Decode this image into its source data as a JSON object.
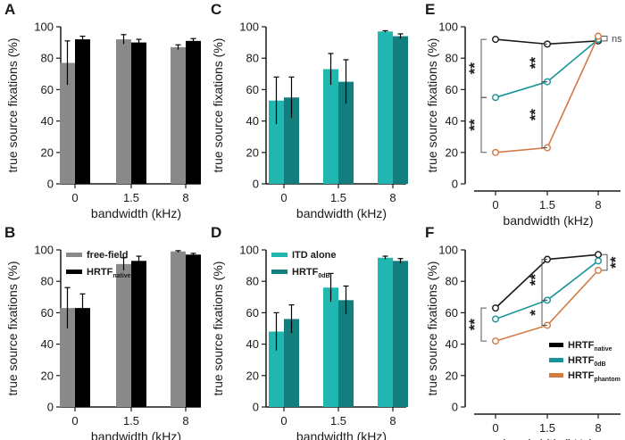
{
  "xlabel": "bandwidth (kHz)",
  "ylabel": "true source fixations (%)",
  "categories": [
    "0",
    "1.5",
    "8"
  ],
  "yticks": [
    "0",
    "20",
    "40",
    "60",
    "80",
    "100"
  ],
  "colors": {
    "gray": "#8a8a8a",
    "black": "#000000",
    "teal_light": "#1fb7b0",
    "teal_dark": "#137e7e",
    "native_line": "#1a1a1a",
    "teal_line": "#19939a",
    "orange": "#d17a44"
  },
  "chart_data": [
    {
      "panel": "A",
      "type": "bar",
      "xlabel": "bandwidth (kHz)",
      "ylabel": "true source fixations (%)",
      "categories": [
        "0",
        "1.5",
        "8"
      ],
      "ylim": [
        0,
        100
      ],
      "series": [
        {
          "name": "free-field",
          "color": "gray",
          "values": [
            77,
            92,
            87
          ],
          "err": [
            14,
            3,
            1.5
          ]
        },
        {
          "name": "HRTF native",
          "color": "black",
          "values": [
            92,
            90,
            91
          ],
          "err": [
            2,
            2,
            1.5
          ]
        }
      ]
    },
    {
      "panel": "B",
      "type": "bar",
      "xlabel": "bandwidth (kHz)",
      "ylabel": "true source fixations (%)",
      "categories": [
        "0",
        "1.5",
        "8"
      ],
      "ylim": [
        0,
        100
      ],
      "legend": {
        "position": "top-left",
        "items": [
          {
            "text": "free-field",
            "sub": "",
            "color": "gray"
          },
          {
            "text": "HRTF",
            "sub": "native",
            "color": "black"
          }
        ]
      },
      "series": [
        {
          "name": "free-field",
          "color": "gray",
          "values": [
            63,
            91,
            99
          ],
          "err": [
            13,
            4,
            0.5
          ]
        },
        {
          "name": "HRTF native",
          "color": "black",
          "values": [
            63,
            93,
            97
          ],
          "err": [
            9,
            3,
            0.8
          ]
        }
      ]
    },
    {
      "panel": "C",
      "type": "bar",
      "xlabel": "bandwidth (kHz)",
      "ylabel": "true source fixations (%)",
      "categories": [
        "0",
        "1.5",
        "8"
      ],
      "ylim": [
        0,
        100
      ],
      "series": [
        {
          "name": "ITD alone",
          "color": "teal_light",
          "values": [
            53,
            73,
            97
          ],
          "err": [
            15,
            10,
            0.5
          ]
        },
        {
          "name": "HRTF 0dB",
          "color": "teal_dark",
          "values": [
            55,
            65,
            94
          ],
          "err": [
            13,
            14,
            1.5
          ]
        }
      ]
    },
    {
      "panel": "D",
      "type": "bar",
      "xlabel": "bandwidth (kHz)",
      "ylabel": "true source fixations (%)",
      "categories": [
        "0",
        "1.5",
        "8"
      ],
      "ylim": [
        0,
        100
      ],
      "legend": {
        "position": "top-left",
        "items": [
          {
            "text": "ITD alone",
            "sub": "",
            "color": "teal_light"
          },
          {
            "text": "HRTF",
            "sub": "0dB",
            "color": "teal_dark"
          }
        ]
      },
      "series": [
        {
          "name": "ITD alone",
          "color": "teal_light",
          "values": [
            48,
            76,
            95
          ],
          "err": [
            12,
            9,
            1
          ]
        },
        {
          "name": "HRTF 0dB",
          "color": "teal_dark",
          "values": [
            56,
            68,
            93
          ],
          "err": [
            9,
            9,
            1.5
          ]
        }
      ]
    },
    {
      "panel": "E",
      "type": "line",
      "xlabel": "bandwidth (kHz)",
      "ylabel": "true source fixations (%)",
      "categories": [
        "0",
        "1.5",
        "8"
      ],
      "ylim": [
        0,
        100
      ],
      "series": [
        {
          "name": "HRTF native",
          "color": "native_line",
          "values": [
            92,
            89,
            91
          ]
        },
        {
          "name": "HRTF 0dB",
          "color": "teal_line",
          "values": [
            55,
            65,
            92
          ]
        },
        {
          "name": "HRTF phantom",
          "color": "orange",
          "values": [
            20,
            23,
            94
          ]
        }
      ],
      "annotations": [
        {
          "text": "**",
          "between": [
            "HRTF native",
            "HRTF 0dB"
          ],
          "at": "0"
        },
        {
          "text": "**",
          "between": [
            "HRTF 0dB",
            "HRTF phantom"
          ],
          "at": "0"
        },
        {
          "text": "**",
          "between": [
            "HRTF native",
            "HRTF 0dB"
          ],
          "at": "1.5"
        },
        {
          "text": "**",
          "between": [
            "HRTF 0dB",
            "HRTF phantom"
          ],
          "at": "1.5"
        },
        {
          "text": "ns",
          "between": [
            "HRTF native",
            "HRTF phantom"
          ],
          "at": "8"
        }
      ]
    },
    {
      "panel": "F",
      "type": "line",
      "xlabel": "bandwidth (kHz)",
      "ylabel": "true source fixations (%)",
      "categories": [
        "0",
        "1.5",
        "8"
      ],
      "ylim": [
        0,
        100
      ],
      "legend": {
        "position": "bottom-right",
        "items": [
          {
            "text": "HRTF",
            "sub": "native",
            "color": "black"
          },
          {
            "text": "HRTF",
            "sub": "0dB",
            "color": "teal_line"
          },
          {
            "text": "HRTF",
            "sub": "phantom",
            "color": "orange"
          }
        ]
      },
      "series": [
        {
          "name": "HRTF native",
          "color": "native_line",
          "values": [
            63,
            94,
            97
          ]
        },
        {
          "name": "HRTF 0dB",
          "color": "teal_line",
          "values": [
            56,
            68,
            93
          ]
        },
        {
          "name": "HRTF phantom",
          "color": "orange",
          "values": [
            42,
            52,
            87
          ]
        }
      ],
      "annotations": [
        {
          "text": "**",
          "between": [
            "HRTF native",
            "HRTF phantom"
          ],
          "at": "0"
        },
        {
          "text": "**",
          "between": [
            "HRTF native",
            "HRTF 0dB"
          ],
          "at": "1.5"
        },
        {
          "text": "*",
          "between": [
            "HRTF 0dB",
            "HRTF phantom"
          ],
          "at": "1.5"
        },
        {
          "text": "**",
          "between": [
            "HRTF native",
            "HRTF phantom"
          ],
          "at": "8"
        }
      ]
    }
  ]
}
